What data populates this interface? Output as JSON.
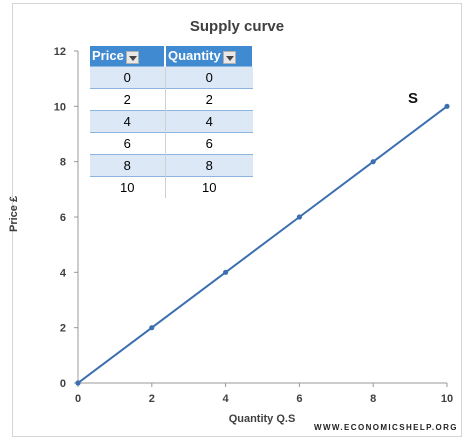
{
  "chart_data": {
    "type": "line",
    "title": "Supply curve",
    "xlabel": "Quantity Q.S",
    "ylabel": "Price £",
    "x": [
      0,
      2,
      4,
      6,
      8,
      10
    ],
    "series": [
      {
        "name": "S",
        "values": [
          0,
          2,
          4,
          6,
          8,
          10
        ]
      }
    ],
    "xlim": [
      0,
      10
    ],
    "ylim": [
      0,
      12
    ],
    "x_ticks": [
      "0",
      "2",
      "4",
      "6",
      "8",
      "10"
    ],
    "y_ticks": [
      "0",
      "2",
      "4",
      "6",
      "8",
      "10",
      "12"
    ],
    "grid": false,
    "line_color": "#3b6fb0"
  },
  "table": {
    "headers": [
      "Price",
      "Quantity"
    ],
    "rows": [
      [
        "0",
        "0"
      ],
      [
        "2",
        "2"
      ],
      [
        "4",
        "4"
      ],
      [
        "6",
        "6"
      ],
      [
        "8",
        "8"
      ],
      [
        "10",
        "10"
      ]
    ],
    "header_color": "#3f8ad1",
    "band_color": "#dce8f6"
  },
  "credit": "WWW.ECONOMICSHELP.ORG"
}
